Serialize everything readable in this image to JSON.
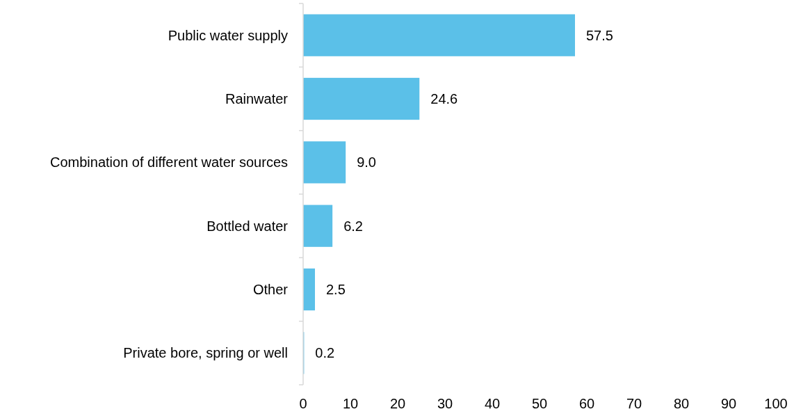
{
  "chart_data": {
    "type": "bar",
    "orientation": "horizontal",
    "categories": [
      "Public water supply",
      "Rainwater",
      "Combination of different water sources",
      "Bottled water",
      "Other",
      "Private bore, spring or well"
    ],
    "values": [
      57.5,
      24.6,
      9.0,
      6.2,
      2.5,
      0.2
    ],
    "value_labels": [
      "57.5",
      "24.6",
      "9.0",
      "6.2",
      "2.5",
      "0.2"
    ],
    "color": "#5bc0e8",
    "xlim": [
      0,
      100
    ],
    "xticks": [
      0,
      10,
      20,
      30,
      40,
      50,
      60,
      70,
      80,
      90,
      100
    ],
    "grid": false
  }
}
